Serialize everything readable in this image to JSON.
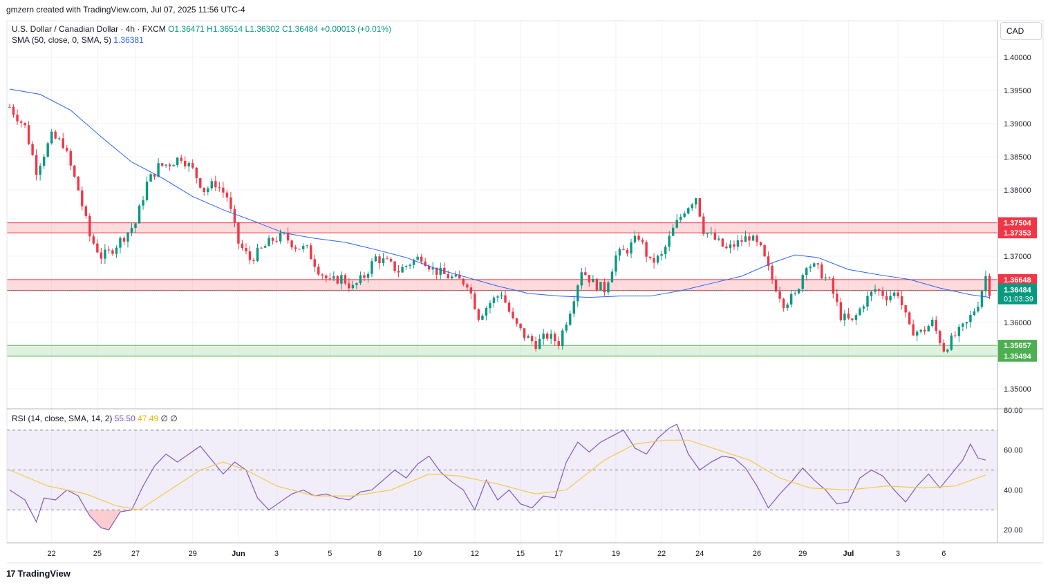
{
  "header": {
    "created_by": "gmzern created with TradingView.com, Jul 07, 2025 11:56 UTC-4",
    "symbol": "U.S. Dollar / Canadian Dollar · 4h · FXCM",
    "open": "O1.36471",
    "high": "H1.36514",
    "low": "L1.36302",
    "close": "C1.36484",
    "change": "+0.00013 (+0.01%)",
    "sma_label": "SMA (50, close, 0, SMA, 5)",
    "sma_value": "1.36381",
    "rsi_label": "RSI (14, close, SMA, 14, 2)",
    "rsi_value": "55.50",
    "rsi_ma_value": "47.49",
    "rsi_extra": "∅  ∅"
  },
  "currency": "CAD",
  "footer": {
    "brand": "TradingView",
    "logo": "tradingview-logo-icon"
  },
  "colors": {
    "up": "#089981",
    "down": "#f23645",
    "sma": "#2962ff",
    "rsi": "#7e57c2",
    "rsi_ma": "#f2c94c",
    "resistance": "#f23645",
    "support": "#4caf50"
  },
  "chart_data": [
    {
      "type": "candlestick",
      "grid": true,
      "ylim": [
        1.347,
        1.4055
      ],
      "y_ticks": [
        "1.40000",
        "1.39500",
        "1.39000",
        "1.38500",
        "1.38000",
        "1.37500",
        "1.37000",
        "1.36500",
        "1.36000",
        "1.35500",
        "1.35000"
      ],
      "x_ticks": [
        "22",
        "25",
        "27",
        "29",
        "Jun",
        "3",
        "5",
        "8",
        "10",
        "12",
        "15",
        "17",
        "19",
        "22",
        "24",
        "26",
        "29",
        "Jul",
        "3",
        "6"
      ],
      "x_tick_index": [
        11,
        23,
        33,
        48,
        60,
        70,
        84,
        97,
        107,
        122,
        134,
        144,
        159,
        171,
        181,
        196,
        208,
        220,
        233,
        245
      ],
      "bar_count": 252,
      "ohlc_guide": [
        [
          0,
          1.3925
        ],
        [
          4,
          1.3895
        ],
        [
          7,
          1.383
        ],
        [
          11,
          1.388
        ],
        [
          14,
          1.387
        ],
        [
          18,
          1.38
        ],
        [
          21,
          1.373
        ],
        [
          24,
          1.37
        ],
        [
          26,
          1.3705
        ],
        [
          30,
          1.373
        ],
        [
          33,
          1.375
        ],
        [
          36,
          1.381
        ],
        [
          39,
          1.3835
        ],
        [
          42,
          1.384
        ],
        [
          45,
          1.385
        ],
        [
          48,
          1.383
        ],
        [
          51,
          1.38
        ],
        [
          54,
          1.381
        ],
        [
          57,
          1.379
        ],
        [
          60,
          1.372
        ],
        [
          63,
          1.3695
        ],
        [
          66,
          1.371
        ],
        [
          69,
          1.3725
        ],
        [
          72,
          1.373
        ],
        [
          75,
          1.3715
        ],
        [
          78,
          1.371
        ],
        [
          81,
          1.368
        ],
        [
          84,
          1.366
        ],
        [
          87,
          1.3668
        ],
        [
          90,
          1.3652
        ],
        [
          93,
          1.367
        ],
        [
          96,
          1.3698
        ],
        [
          99,
          1.369
        ],
        [
          102,
          1.3678
        ],
        [
          105,
          1.369
        ],
        [
          108,
          1.37
        ],
        [
          111,
          1.368
        ],
        [
          114,
          1.3672
        ],
        [
          117,
          1.3665
        ],
        [
          120,
          1.366
        ],
        [
          123,
          1.361
        ],
        [
          126,
          1.363
        ],
        [
          129,
          1.3645
        ],
        [
          132,
          1.3602
        ],
        [
          135,
          1.358
        ],
        [
          138,
          1.3568
        ],
        [
          141,
          1.358
        ],
        [
          144,
          1.357
        ],
        [
          147,
          1.362
        ],
        [
          150,
          1.368
        ],
        [
          153,
          1.366
        ],
        [
          156,
          1.365
        ],
        [
          159,
          1.37
        ],
        [
          162,
          1.371
        ],
        [
          165,
          1.373
        ],
        [
          168,
          1.369
        ],
        [
          171,
          1.37
        ],
        [
          174,
          1.374
        ],
        [
          177,
          1.377
        ],
        [
          180,
          1.379
        ],
        [
          182,
          1.374
        ],
        [
          185,
          1.3725
        ],
        [
          188,
          1.371
        ],
        [
          191,
          1.372
        ],
        [
          194,
          1.373
        ],
        [
          197,
          1.371
        ],
        [
          200,
          1.3665
        ],
        [
          203,
          1.363
        ],
        [
          206,
          1.364
        ],
        [
          209,
          1.369
        ],
        [
          212,
          1.368
        ],
        [
          215,
          1.366
        ],
        [
          218,
          1.361
        ],
        [
          221,
          1.36
        ],
        [
          224,
          1.363
        ],
        [
          227,
          1.365
        ],
        [
          230,
          1.364
        ],
        [
          233,
          1.3645
        ],
        [
          236,
          1.359
        ],
        [
          239,
          1.3585
        ],
        [
          242,
          1.36
        ],
        [
          245,
          1.356
        ],
        [
          248,
          1.358
        ],
        [
          251,
          1.3598
        ],
        [
          254,
          1.363
        ],
        [
          256,
          1.367
        ],
        [
          257,
          1.3648
        ]
      ],
      "sma": {
        "name": "SMA",
        "points": [
          [
            0,
            1.3952
          ],
          [
            8,
            1.3944
          ],
          [
            16,
            1.392
          ],
          [
            24,
            1.388
          ],
          [
            32,
            1.3842
          ],
          [
            40,
            1.3818
          ],
          [
            48,
            1.379
          ],
          [
            56,
            1.377
          ],
          [
            64,
            1.3753
          ],
          [
            72,
            1.3735
          ],
          [
            80,
            1.3727
          ],
          [
            88,
            1.3721
          ],
          [
            96,
            1.371
          ],
          [
            104,
            1.3698
          ],
          [
            112,
            1.3681
          ],
          [
            120,
            1.3668
          ],
          [
            128,
            1.3655
          ],
          [
            136,
            1.3644
          ],
          [
            144,
            1.364
          ],
          [
            152,
            1.3638
          ],
          [
            160,
            1.364
          ],
          [
            168,
            1.364
          ],
          [
            176,
            1.3648
          ],
          [
            184,
            1.3659
          ],
          [
            192,
            1.367
          ],
          [
            200,
            1.369
          ],
          [
            206,
            1.3702
          ],
          [
            212,
            1.3698
          ],
          [
            220,
            1.368
          ],
          [
            228,
            1.3672
          ],
          [
            236,
            1.3665
          ],
          [
            244,
            1.3652
          ],
          [
            252,
            1.3642
          ],
          [
            257,
            1.3638
          ]
        ]
      },
      "zones": [
        {
          "name": "resistance",
          "top": 1.37504,
          "bottom": 1.37353,
          "top_label": "1.37504",
          "bottom_label": "1.37353"
        },
        {
          "name": "resistance",
          "top": 1.36648,
          "bottom": 1.36482,
          "top_label": "1.36648",
          "bottom_label": "1.36482"
        },
        {
          "name": "support",
          "top": 1.35657,
          "bottom": 1.35494,
          "top_label": "1.35657",
          "bottom_label": "1.35494"
        }
      ],
      "current_price": {
        "value": 1.36484,
        "label": "1.36484",
        "timer": "01:03:39"
      }
    },
    {
      "type": "line",
      "ylim": [
        13.5,
        80
      ],
      "y_ticks": [
        "80.00",
        "60.00",
        "40.00",
        "20.00"
      ],
      "levels": [
        70,
        50,
        30
      ],
      "series": [
        {
          "name": "RSI",
          "points": [
            [
              0,
              40
            ],
            [
              4,
              35
            ],
            [
              7,
              24
            ],
            [
              9,
              36
            ],
            [
              12,
              35
            ],
            [
              15,
              40
            ],
            [
              18,
              37
            ],
            [
              21,
              27
            ],
            [
              24,
              21
            ],
            [
              26,
              20
            ],
            [
              29,
              29
            ],
            [
              32,
              30
            ],
            [
              35,
              42
            ],
            [
              38,
              52
            ],
            [
              41,
              58
            ],
            [
              44,
              54
            ],
            [
              47,
              58
            ],
            [
              50,
              62
            ],
            [
              53,
              55
            ],
            [
              56,
              48
            ],
            [
              59,
              54
            ],
            [
              62,
              50
            ],
            [
              65,
              36
            ],
            [
              68,
              30
            ],
            [
              71,
              34
            ],
            [
              74,
              38
            ],
            [
              77,
              40
            ],
            [
              80,
              37
            ],
            [
              83,
              38
            ],
            [
              86,
              36
            ],
            [
              89,
              35
            ],
            [
              92,
              39
            ],
            [
              95,
              40
            ],
            [
              98,
              45
            ],
            [
              101,
              50
            ],
            [
              104,
              46
            ],
            [
              107,
              53
            ],
            [
              110,
              57
            ],
            [
              113,
              49
            ],
            [
              116,
              44
            ],
            [
              119,
              40
            ],
            [
              122,
              30
            ],
            [
              125,
              45
            ],
            [
              128,
              35
            ],
            [
              131,
              40
            ],
            [
              134,
              33
            ],
            [
              137,
              31
            ],
            [
              140,
              37
            ],
            [
              143,
              36
            ],
            [
              146,
              54
            ],
            [
              149,
              64
            ],
            [
              152,
              59
            ],
            [
              155,
              64
            ],
            [
              158,
              67
            ],
            [
              161,
              70
            ],
            [
              164,
              61
            ],
            [
              167,
              58
            ],
            [
              170,
              66
            ],
            [
              173,
              71
            ],
            [
              175,
              73
            ],
            [
              178,
              58
            ],
            [
              181,
              50
            ],
            [
              184,
              54
            ],
            [
              187,
              57
            ],
            [
              190,
              56
            ],
            [
              193,
              51
            ],
            [
              196,
              42
            ],
            [
              199,
              31
            ],
            [
              202,
              38
            ],
            [
              205,
              44
            ],
            [
              208,
              51
            ],
            [
              211,
              45
            ],
            [
              214,
              40
            ],
            [
              217,
              33
            ],
            [
              220,
              34
            ],
            [
              223,
              46
            ],
            [
              226,
              50
            ],
            [
              229,
              47
            ],
            [
              232,
              40
            ],
            [
              235,
              34
            ],
            [
              238,
              42
            ],
            [
              241,
              48
            ],
            [
              244,
              41
            ],
            [
              247,
              48
            ],
            [
              250,
              55
            ],
            [
              252,
              63
            ],
            [
              254,
              56
            ],
            [
              256,
              55
            ]
          ]
        },
        {
          "name": "RSI MA",
          "points": [
            [
              0,
              50
            ],
            [
              10,
              42
            ],
            [
              20,
              38
            ],
            [
              28,
              32
            ],
            [
              34,
              30
            ],
            [
              42,
              40
            ],
            [
              50,
              50
            ],
            [
              56,
              54
            ],
            [
              62,
              50
            ],
            [
              70,
              42
            ],
            [
              80,
              37
            ],
            [
              90,
              37
            ],
            [
              100,
              40
            ],
            [
              110,
              48
            ],
            [
              118,
              47
            ],
            [
              128,
              43
            ],
            [
              138,
              38
            ],
            [
              146,
              40
            ],
            [
              156,
              55
            ],
            [
              164,
              63
            ],
            [
              172,
              65
            ],
            [
              178,
              65
            ],
            [
              186,
              60
            ],
            [
              194,
              55
            ],
            [
              202,
              46
            ],
            [
              210,
              41
            ],
            [
              220,
              40
            ],
            [
              230,
              42
            ],
            [
              240,
              41
            ],
            [
              248,
              42
            ],
            [
              256,
              47.5
            ]
          ]
        }
      ]
    }
  ]
}
